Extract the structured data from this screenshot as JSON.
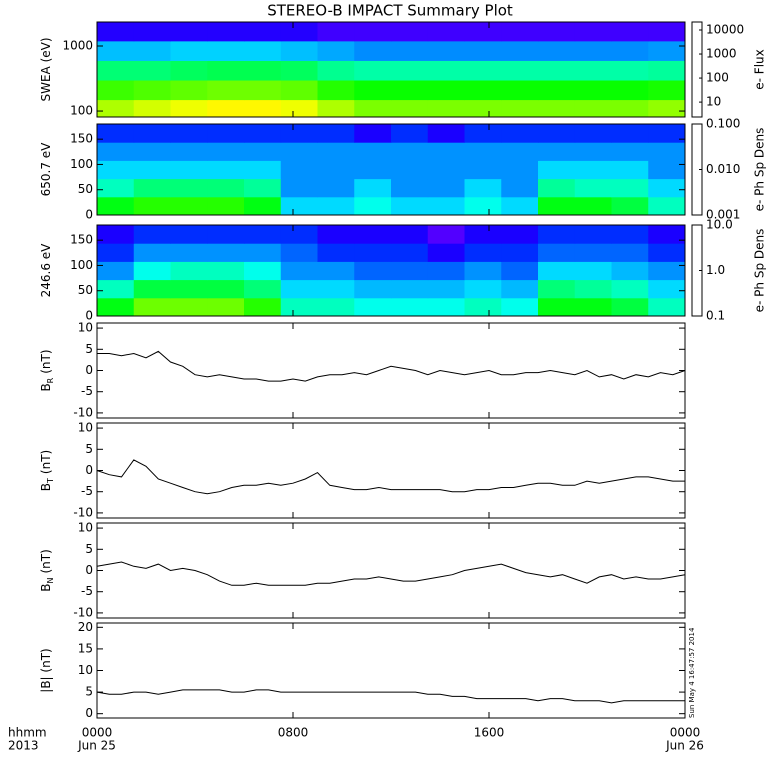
{
  "title": "STEREO-B IMPACT Summary Plot",
  "footer": {
    "x_label": "hhmm",
    "year": "2013",
    "timestamp": "Sun May  4 16:47:57 2014"
  },
  "chart_data": [
    {
      "type": "heatmap",
      "ylabel": "SWEA (eV)",
      "ylog": true,
      "ylim": [
        81,
        2340
      ],
      "yticks": [
        100,
        1000
      ],
      "xlim": [
        0,
        24
      ],
      "xticks": [
        0,
        8,
        16,
        24
      ],
      "xbins": [
        0,
        1.5,
        3,
        4.5,
        6,
        7.5,
        9,
        10.5,
        12,
        13.5,
        15,
        16.5,
        18,
        19.5,
        21,
        22.5,
        24
      ],
      "ybins": [
        81,
        150,
        300,
        600,
        1200,
        2340
      ],
      "z": [
        [
          1500,
          2000,
          2500,
          3000,
          3000,
          2500,
          1500,
          1000,
          1000,
          1000,
          1000,
          1000,
          1000,
          1000,
          1000,
          1200
        ],
        [
          600,
          700,
          800,
          900,
          900,
          800,
          500,
          400,
          400,
          400,
          400,
          400,
          400,
          400,
          400,
          450
        ],
        [
          150,
          150,
          180,
          200,
          200,
          180,
          120,
          100,
          100,
          100,
          100,
          100,
          100,
          100,
          100,
          110
        ],
        [
          30,
          30,
          35,
          35,
          35,
          30,
          25,
          20,
          20,
          20,
          20,
          20,
          20,
          20,
          20,
          22
        ],
        [
          5,
          5,
          5,
          5,
          5,
          5,
          4,
          4,
          4,
          4,
          4,
          4,
          4,
          4,
          4,
          4
        ]
      ],
      "zlog": true,
      "zlim": [
        2.4,
        21500
      ],
      "zticks": [
        10,
        100,
        1000,
        10000
      ],
      "zlabel": "e- Flux"
    },
    {
      "type": "heatmap",
      "ylabel": "650.7 eV",
      "ylog": false,
      "ylim": [
        0,
        180
      ],
      "yticks": [
        0,
        50,
        100,
        150
      ],
      "xlim": [
        0,
        24
      ],
      "xticks": [
        0,
        8,
        16,
        24
      ],
      "xbins": [
        0,
        1.5,
        3,
        4.5,
        6,
        7.5,
        9,
        10.5,
        12,
        13.5,
        15,
        16.5,
        18,
        19.5,
        21,
        22.5,
        24
      ],
      "ybins": [
        0,
        36,
        72,
        108,
        144,
        180
      ],
      "z": [
        [
          0.012,
          0.015,
          0.015,
          0.015,
          0.012,
          0.004,
          0.004,
          0.005,
          0.004,
          0.004,
          0.005,
          0.004,
          0.012,
          0.012,
          0.01,
          0.006
        ],
        [
          0.006,
          0.008,
          0.008,
          0.008,
          0.007,
          0.003,
          0.003,
          0.004,
          0.003,
          0.003,
          0.004,
          0.003,
          0.007,
          0.006,
          0.006,
          0.004
        ],
        [
          0.004,
          0.004,
          0.004,
          0.004,
          0.004,
          0.003,
          0.003,
          0.003,
          0.003,
          0.003,
          0.003,
          0.003,
          0.004,
          0.004,
          0.004,
          0.003
        ],
        [
          0.003,
          0.003,
          0.003,
          0.003,
          0.003,
          0.003,
          0.003,
          0.003,
          0.003,
          0.003,
          0.003,
          0.003,
          0.003,
          0.003,
          0.003,
          0.003
        ],
        [
          0.002,
          0.002,
          0.002,
          0.002,
          0.002,
          0.002,
          0.002,
          0.0015,
          0.002,
          0.0015,
          0.002,
          0.002,
          0.002,
          0.002,
          0.002,
          0.002
        ]
      ],
      "zlog": true,
      "zlim": [
        0.001,
        0.1
      ],
      "zticks": [
        {
          "value": 0.001,
          "label": "0.001"
        },
        {
          "value": 0.01,
          "label": "0.010"
        },
        {
          "value": 0.1,
          "label": "0.100"
        }
      ],
      "zlabel": "e- Ph Sp Dens"
    },
    {
      "type": "heatmap",
      "ylabel": "246.6 eV",
      "ylog": false,
      "ylim": [
        0,
        180
      ],
      "yticks": [
        0,
        50,
        100,
        150
      ],
      "xlim": [
        0,
        24
      ],
      "xticks": [
        0,
        8,
        16,
        24
      ],
      "xbins": [
        0,
        1.5,
        3,
        4.5,
        6,
        7.5,
        9,
        10.5,
        12,
        13.5,
        15,
        16.5,
        18,
        19.5,
        21,
        22.5,
        24
      ],
      "ybins": [
        0,
        36,
        72,
        108,
        144,
        180
      ],
      "z": [
        [
          1.2,
          2,
          2,
          2,
          1.5,
          0.6,
          0.6,
          0.5,
          0.5,
          0.5,
          0.6,
          0.5,
          1.2,
          1.2,
          1,
          0.6
        ],
        [
          0.6,
          1,
          1,
          1,
          0.8,
          0.4,
          0.4,
          0.35,
          0.35,
          0.35,
          0.4,
          0.35,
          0.8,
          0.7,
          0.6,
          0.4
        ],
        [
          0.3,
          0.5,
          0.6,
          0.6,
          0.5,
          0.3,
          0.3,
          0.25,
          0.25,
          0.25,
          0.3,
          0.25,
          0.4,
          0.4,
          0.35,
          0.3
        ],
        [
          0.2,
          0.3,
          0.3,
          0.3,
          0.3,
          0.25,
          0.2,
          0.2,
          0.2,
          0.15,
          0.2,
          0.2,
          0.25,
          0.25,
          0.25,
          0.2
        ],
        [
          0.15,
          0.2,
          0.2,
          0.2,
          0.2,
          0.2,
          0.15,
          0.15,
          0.15,
          0.12,
          0.15,
          0.15,
          0.2,
          0.2,
          0.2,
          0.15
        ]
      ],
      "zlog": true,
      "zlim": [
        0.1,
        10
      ],
      "zticks": [
        {
          "value": 0.1,
          "label": "0.1"
        },
        {
          "value": 1,
          "label": "1.0"
        },
        {
          "value": 10,
          "label": "10.0"
        }
      ],
      "zlabel": "e- Ph Sp Dens"
    },
    {
      "type": "line",
      "ylabel": "B",
      "ylabel_sub": "R",
      "ylabel_unit": "(nT)",
      "ylim": [
        -11.2,
        11.2
      ],
      "yticks": [
        -10,
        -5,
        0,
        5,
        10
      ],
      "xlim": [
        0,
        24
      ],
      "xticks": [
        0,
        8,
        16,
        24
      ],
      "color": "#000000",
      "x": [
        0,
        0.5,
        1,
        1.5,
        2,
        2.5,
        3,
        3.5,
        4,
        4.5,
        5,
        5.5,
        6,
        6.5,
        7,
        7.5,
        8,
        8.5,
        9,
        9.5,
        10,
        10.5,
        11,
        11.5,
        12,
        12.5,
        13,
        13.5,
        14,
        14.5,
        15,
        15.5,
        16,
        16.5,
        17,
        17.5,
        18,
        18.5,
        19,
        19.5,
        20,
        20.5,
        21,
        21.5,
        22,
        22.5,
        23,
        23.5,
        24
      ],
      "values": [
        4,
        4,
        3.5,
        4,
        3,
        4.5,
        2,
        1,
        -1,
        -1.5,
        -1,
        -1.5,
        -2,
        -2,
        -2.5,
        -2.5,
        -2,
        -2.5,
        -1.5,
        -1,
        -1,
        -0.5,
        -1,
        0,
        1,
        0.5,
        0,
        -1,
        0,
        -0.5,
        -1,
        -0.5,
        0,
        -1,
        -1,
        -0.5,
        -0.5,
        0,
        -0.5,
        -1,
        0,
        -1.5,
        -1,
        -2,
        -1,
        -1.5,
        -0.5,
        -1,
        0
      ]
    },
    {
      "type": "line",
      "ylabel": "B",
      "ylabel_sub": "T",
      "ylabel_unit": "(nT)",
      "ylim": [
        -11.2,
        11.2
      ],
      "yticks": [
        -10,
        -5,
        0,
        5,
        10
      ],
      "xlim": [
        0,
        24
      ],
      "xticks": [
        0,
        8,
        16,
        24
      ],
      "color": "#000000",
      "x": [
        0,
        0.5,
        1,
        1.5,
        2,
        2.5,
        3,
        3.5,
        4,
        4.5,
        5,
        5.5,
        6,
        6.5,
        7,
        7.5,
        8,
        8.5,
        9,
        9.5,
        10,
        10.5,
        11,
        11.5,
        12,
        12.5,
        13,
        13.5,
        14,
        14.5,
        15,
        15.5,
        16,
        16.5,
        17,
        17.5,
        18,
        18.5,
        19,
        19.5,
        20,
        20.5,
        21,
        21.5,
        22,
        22.5,
        23,
        23.5,
        24
      ],
      "values": [
        0,
        -1,
        -1.5,
        2.5,
        1,
        -2,
        -3,
        -4,
        -5,
        -5.5,
        -5,
        -4,
        -3.5,
        -3.5,
        -3,
        -3.5,
        -3,
        -2,
        -0.5,
        -3.5,
        -4,
        -4.5,
        -4.5,
        -4,
        -4.5,
        -4.5,
        -4.5,
        -4.5,
        -4.5,
        -5,
        -5,
        -4.5,
        -4.5,
        -4,
        -4,
        -3.5,
        -3,
        -3,
        -3.5,
        -3.5,
        -2.5,
        -3,
        -2.5,
        -2,
        -1.5,
        -1.5,
        -2,
        -2.5,
        -2.5
      ]
    },
    {
      "type": "line",
      "ylabel": "B",
      "ylabel_sub": "N",
      "ylabel_unit": "(nT)",
      "ylim": [
        -11.2,
        11.2
      ],
      "yticks": [
        -10,
        -5,
        0,
        5,
        10
      ],
      "xlim": [
        0,
        24
      ],
      "xticks": [
        0,
        8,
        16,
        24
      ],
      "color": "#000000",
      "x": [
        0,
        0.5,
        1,
        1.5,
        2,
        2.5,
        3,
        3.5,
        4,
        4.5,
        5,
        5.5,
        6,
        6.5,
        7,
        7.5,
        8,
        8.5,
        9,
        9.5,
        10,
        10.5,
        11,
        11.5,
        12,
        12.5,
        13,
        13.5,
        14,
        14.5,
        15,
        15.5,
        16,
        16.5,
        17,
        17.5,
        18,
        18.5,
        19,
        19.5,
        20,
        20.5,
        21,
        21.5,
        22,
        22.5,
        23,
        23.5,
        24
      ],
      "values": [
        1,
        1.5,
        2,
        1,
        0.5,
        1.5,
        0,
        0.5,
        0,
        -1,
        -2.5,
        -3.5,
        -3.5,
        -3,
        -3.5,
        -3.5,
        -3.5,
        -3.5,
        -3,
        -3,
        -2.5,
        -2,
        -2,
        -1.5,
        -2,
        -2.5,
        -2.5,
        -2,
        -1.5,
        -1,
        0,
        0.5,
        1,
        1.5,
        0.5,
        -0.5,
        -1,
        -1.5,
        -1,
        -2,
        -3,
        -1.5,
        -1,
        -2,
        -1.5,
        -2,
        -2,
        -1.5,
        -1
      ]
    },
    {
      "type": "line",
      "ylabel": "|B| (nT)",
      "ylim": [
        -1,
        21
      ],
      "yticks": [
        0,
        5,
        10,
        15,
        20
      ],
      "xlim": [
        0,
        24
      ],
      "color": "#000000",
      "xticks": [
        {
          "value": 0,
          "label": "0000"
        },
        {
          "value": 8,
          "label": "0800"
        },
        {
          "value": 16,
          "label": "1600"
        },
        {
          "value": 24,
          "label": "0000"
        }
      ],
      "xdates": [
        {
          "value": 0,
          "label": "Jun 25"
        },
        {
          "value": 24,
          "label": "Jun 26"
        }
      ],
      "x": [
        0,
        0.5,
        1,
        1.5,
        2,
        2.5,
        3,
        3.5,
        4,
        4.5,
        5,
        5.5,
        6,
        6.5,
        7,
        7.5,
        8,
        8.5,
        9,
        9.5,
        10,
        10.5,
        11,
        11.5,
        12,
        12.5,
        13,
        13.5,
        14,
        14.5,
        15,
        15.5,
        16,
        16.5,
        17,
        17.5,
        18,
        18.5,
        19,
        19.5,
        20,
        20.5,
        21,
        21.5,
        22,
        22.5,
        23,
        23.5,
        24
      ],
      "values": [
        5,
        4.5,
        4.5,
        5,
        5,
        4.5,
        5,
        5.5,
        5.5,
        5.5,
        5.5,
        5,
        5,
        5.5,
        5.5,
        5,
        5,
        5,
        5,
        5,
        5,
        5,
        5,
        5,
        5,
        5,
        5,
        4.5,
        4.5,
        4,
        4,
        3.5,
        3.5,
        3.5,
        3.5,
        3.5,
        3,
        3.5,
        3.5,
        3,
        3,
        3,
        2.5,
        3,
        3,
        3,
        3,
        3,
        3
      ]
    }
  ]
}
